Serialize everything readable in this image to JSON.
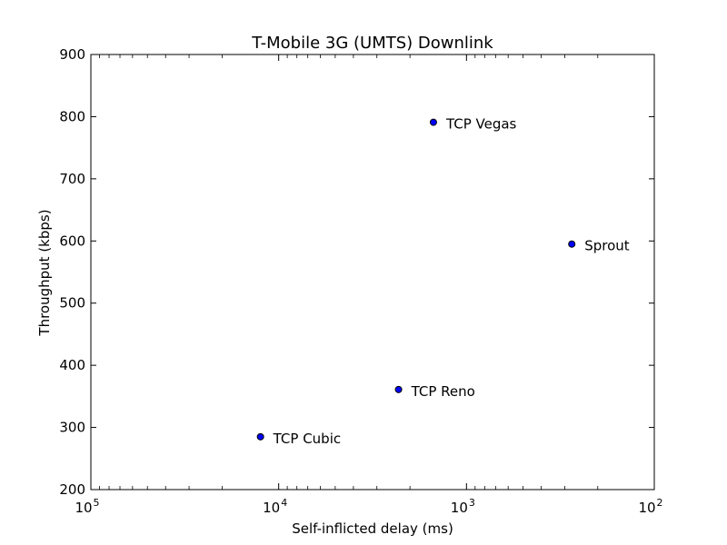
{
  "chart_data": {
    "type": "scatter",
    "title": "T-Mobile 3G (UMTS) Downlink",
    "xlabel": "Self-inflicted delay (ms)",
    "ylabel": "Throughput (kbps)",
    "x_scale": "log",
    "x_reversed": true,
    "xlim": [
      100000,
      100
    ],
    "ylim": [
      200,
      900
    ],
    "x_tick_labels": [
      {
        "value": 100000,
        "base": "10",
        "exp": "5"
      },
      {
        "value": 10000,
        "base": "10",
        "exp": "4"
      },
      {
        "value": 1000,
        "base": "10",
        "exp": "3"
      },
      {
        "value": 100,
        "base": "10",
        "exp": "2"
      }
    ],
    "y_ticks": [
      200,
      300,
      400,
      500,
      600,
      700,
      800,
      900
    ],
    "y_tick_labels": [
      "200",
      "300",
      "400",
      "500",
      "600",
      "700",
      "800",
      "900"
    ],
    "grid": false,
    "marker_color": "#0000ff",
    "points": [
      {
        "label": "TCP Vegas",
        "x": 1500,
        "y": 791
      },
      {
        "label": "Sprout",
        "x": 275,
        "y": 595
      },
      {
        "label": "TCP Reno",
        "x": 2300,
        "y": 361
      },
      {
        "label": "TCP Cubic",
        "x": 12500,
        "y": 285
      }
    ]
  }
}
